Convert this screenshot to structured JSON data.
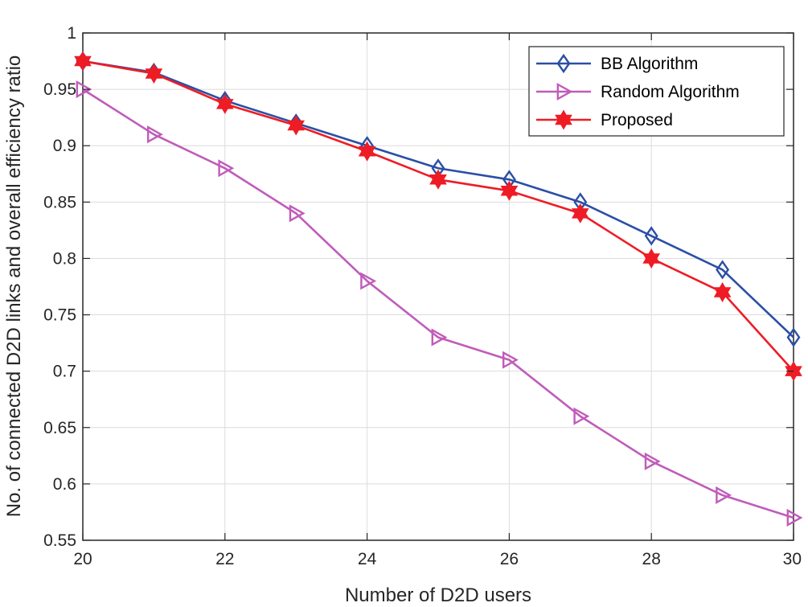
{
  "chart_data": {
    "type": "line",
    "title": "",
    "xlabel": "Number of D2D users",
    "ylabel": "No. of connected D2D links and overall efficiency ratio",
    "x": [
      20,
      21,
      22,
      23,
      24,
      25,
      26,
      27,
      28,
      29,
      30
    ],
    "xlim": [
      20,
      30
    ],
    "ylim": [
      0.55,
      1
    ],
    "xticks": [
      20,
      22,
      24,
      26,
      28,
      30
    ],
    "xtick_labels": [
      "20",
      "22",
      "24",
      "26",
      "28",
      "30"
    ],
    "yticks": [
      0.55,
      0.6,
      0.65,
      0.7,
      0.75,
      0.8,
      0.85,
      0.9,
      0.95,
      1
    ],
    "ytick_labels": [
      "0.55",
      "0.6",
      "0.65",
      "0.7",
      "0.75",
      "0.8",
      "0.85",
      "0.9",
      "0.95",
      "1"
    ],
    "grid": true,
    "legend_position": "top-right",
    "series": [
      {
        "name": "BB Algorithm",
        "color": "#2b4fa6",
        "marker": "diamond",
        "values": [
          0.975,
          0.965,
          0.94,
          0.92,
          0.9,
          0.88,
          0.87,
          0.85,
          0.82,
          0.79,
          0.73
        ]
      },
      {
        "name": "Random Algorithm",
        "color": "#c05cba",
        "marker": "triangle-right",
        "values": [
          0.95,
          0.91,
          0.88,
          0.84,
          0.78,
          0.73,
          0.71,
          0.66,
          0.62,
          0.59,
          0.57
        ]
      },
      {
        "name": "Proposed",
        "color": "#ee1c25",
        "marker": "hexagram",
        "values": [
          0.975,
          0.964,
          0.937,
          0.918,
          0.895,
          0.87,
          0.86,
          0.84,
          0.8,
          0.77,
          0.7
        ]
      }
    ]
  }
}
